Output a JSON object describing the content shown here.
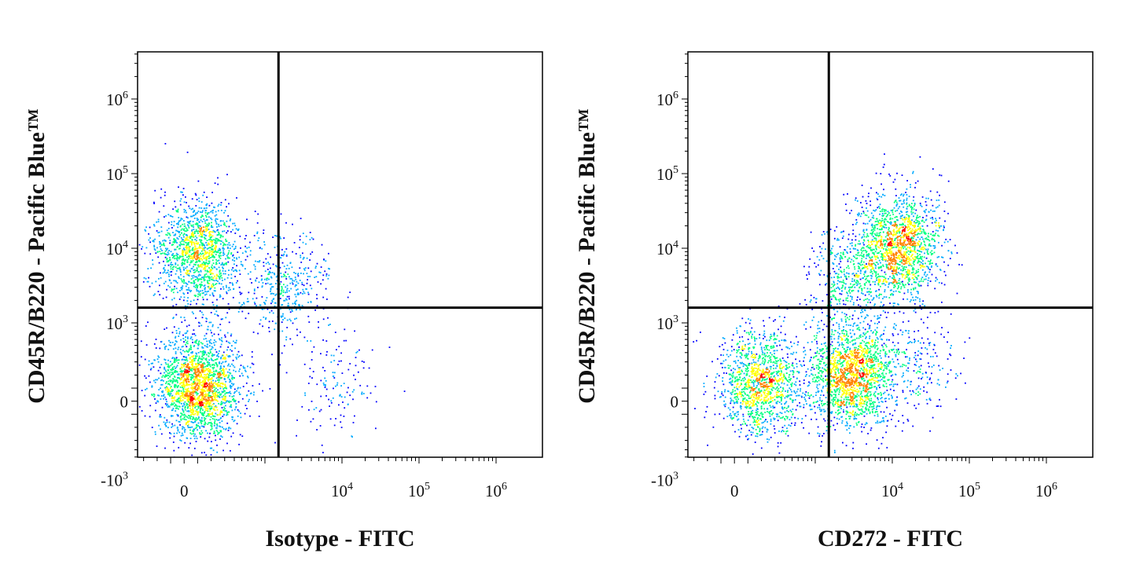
{
  "chart_data": [
    {
      "type": "scatter",
      "subtype": "flow-cytometry-density-dot-plot",
      "title": "",
      "xlabel": "Isotype - FITC",
      "ylabel": "CD45R/B220 - Pacific Blue™",
      "x_scale": "biexponential",
      "y_scale": "biexponential",
      "x_ticks": [
        {
          "value": 0,
          "base": "0",
          "exp": ""
        },
        {
          "value": 10000,
          "base": "10",
          "exp": "4"
        },
        {
          "value": 100000,
          "base": "10",
          "exp": "5"
        },
        {
          "value": 1000000,
          "base": "10",
          "exp": "6"
        }
      ],
      "y_ticks": [
        {
          "value": 1000000,
          "base": "10",
          "exp": "6"
        },
        {
          "value": 100000,
          "base": "10",
          "exp": "5"
        },
        {
          "value": 10000,
          "base": "10",
          "exp": "4"
        },
        {
          "value": 1000,
          "base": "10",
          "exp": "3"
        },
        {
          "value": 0,
          "base": "0",
          "exp": ""
        },
        {
          "value": -1000,
          "base": "-10",
          "exp": "3"
        }
      ],
      "quadrant_gate": {
        "x": 1500,
        "y": 1600
      },
      "colormap": [
        "#0000ff",
        "#00aaff",
        "#00ff80",
        "#ffff00",
        "#ff8000",
        "#ff0000"
      ],
      "populations": [
        {
          "x": 100,
          "y": 9000,
          "n": 1400
        },
        {
          "x": 100,
          "y": 120,
          "n": 2100
        },
        {
          "x": 1800,
          "y": 3500,
          "n": 420
        },
        {
          "x": 8000,
          "y": 150,
          "n": 140
        }
      ]
    },
    {
      "type": "scatter",
      "subtype": "flow-cytometry-density-dot-plot",
      "title": "",
      "xlabel": "CD272 - FITC",
      "ylabel": "CD45R/B220 - Pacific Blue™",
      "x_scale": "biexponential",
      "y_scale": "biexponential",
      "x_ticks": [
        {
          "value": 0,
          "base": "0",
          "exp": ""
        },
        {
          "value": 10000,
          "base": "10",
          "exp": "4"
        },
        {
          "value": 100000,
          "base": "10",
          "exp": "5"
        },
        {
          "value": 1000000,
          "base": "10",
          "exp": "6"
        }
      ],
      "y_ticks": [
        {
          "value": 1000000,
          "base": "10",
          "exp": "6"
        },
        {
          "value": 100000,
          "base": "10",
          "exp": "5"
        },
        {
          "value": 10000,
          "base": "10",
          "exp": "4"
        },
        {
          "value": 1000,
          "base": "10",
          "exp": "3"
        },
        {
          "value": 0,
          "base": "0",
          "exp": ""
        },
        {
          "value": -1000,
          "base": "-10",
          "exp": "3"
        }
      ],
      "quadrant_gate": {
        "x": 1500,
        "y": 1600
      },
      "colormap": [
        "#0000ff",
        "#00aaff",
        "#00ff80",
        "#ffff00",
        "#ff8000",
        "#ff0000"
      ],
      "populations": [
        {
          "x": 12000,
          "y": 11000,
          "n": 1500
        },
        {
          "x": 3000,
          "y": 200,
          "n": 1700
        },
        {
          "x": 200,
          "y": 150,
          "n": 1300
        },
        {
          "x": 3000,
          "y": 3500,
          "n": 500
        },
        {
          "x": 20000,
          "y": 300,
          "n": 220
        }
      ]
    }
  ]
}
